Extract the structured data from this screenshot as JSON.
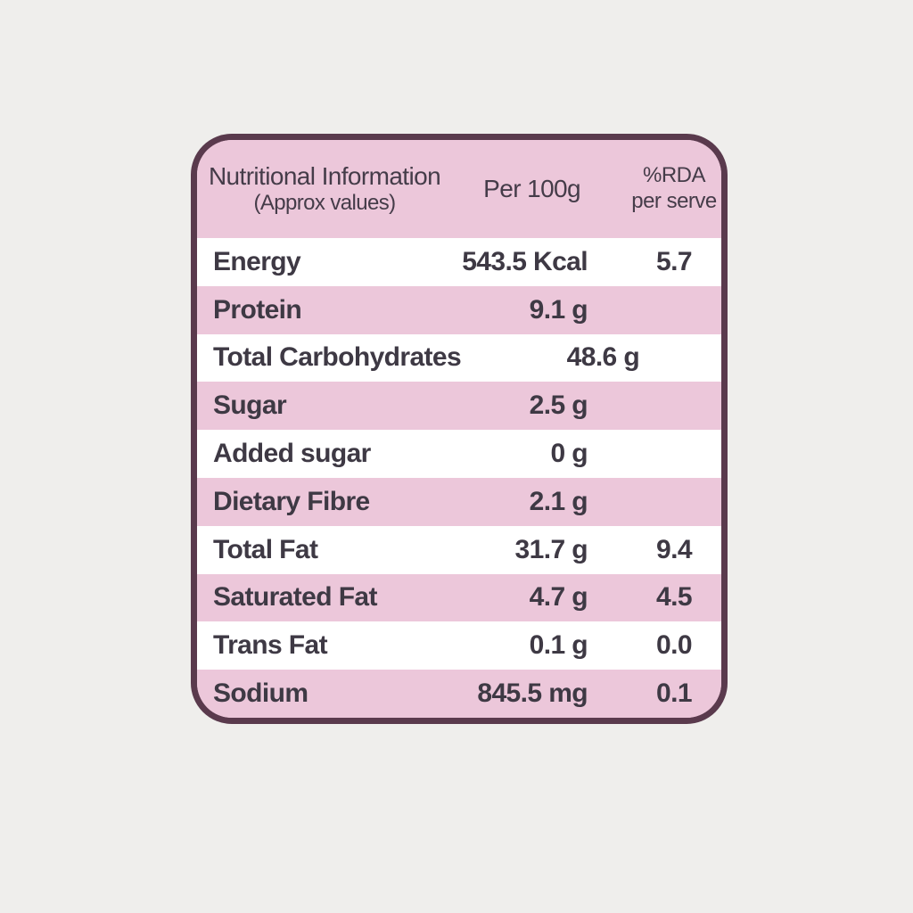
{
  "page": {
    "background_color": "#efeeec"
  },
  "card": {
    "border_color": "#5a3a4d",
    "pink_color": "#ecc7da",
    "row_text_color": "#3e3944",
    "header": {
      "title": "Nutritional Information",
      "subtitle": "(Approx values)",
      "col_value": "Per 100g",
      "col_rda_line1": "%RDA",
      "col_rda_line2": "per serve"
    },
    "rows": [
      {
        "label": "Energy",
        "value": "543.5 Kcal",
        "rda": "5.7"
      },
      {
        "label": "Protein",
        "value": "9.1 g",
        "rda": ""
      },
      {
        "label": "Total Carbohydrates",
        "value": "48.6 g",
        "rda": ""
      },
      {
        "label": "Sugar",
        "value": "2.5 g",
        "rda": ""
      },
      {
        "label": "Added sugar",
        "value": "0 g",
        "rda": ""
      },
      {
        "label": "Dietary Fibre",
        "value": "2.1 g",
        "rda": ""
      },
      {
        "label": "Total Fat",
        "value": "31.7 g",
        "rda": "9.4"
      },
      {
        "label": "Saturated Fat",
        "value": "4.7 g",
        "rda": "4.5"
      },
      {
        "label": "Trans Fat",
        "value": "0.1 g",
        "rda": "0.0"
      },
      {
        "label": "Sodium",
        "value": "845.5 mg",
        "rda": "0.1"
      }
    ]
  }
}
